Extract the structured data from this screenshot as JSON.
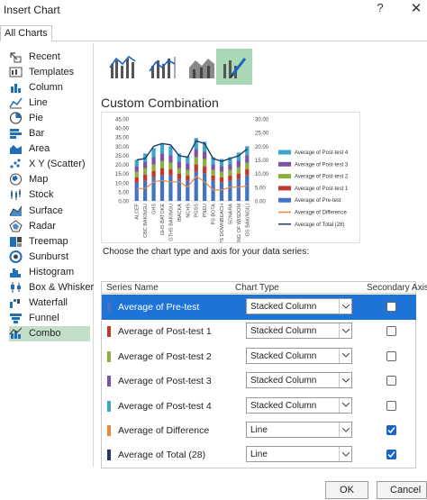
{
  "window": {
    "title": "Insert Chart",
    "help_label": "?",
    "close_label": "✕"
  },
  "tabs": [
    {
      "label": "All Charts"
    }
  ],
  "chart_types": [
    {
      "label": "Recent",
      "icon": "recent-icon"
    },
    {
      "label": "Templates",
      "icon": "templates-icon"
    },
    {
      "label": "Column",
      "icon": "column-chart-icon"
    },
    {
      "label": "Line",
      "icon": "line-chart-icon"
    },
    {
      "label": "Pie",
      "icon": "pie-chart-icon"
    },
    {
      "label": "Bar",
      "icon": "bar-chart-icon"
    },
    {
      "label": "Area",
      "icon": "area-chart-icon"
    },
    {
      "label": "X Y (Scatter)",
      "icon": "scatter-chart-icon"
    },
    {
      "label": "Map",
      "icon": "map-chart-icon"
    },
    {
      "label": "Stock",
      "icon": "stock-chart-icon"
    },
    {
      "label": "Surface",
      "icon": "surface-chart-icon"
    },
    {
      "label": "Radar",
      "icon": "radar-chart-icon"
    },
    {
      "label": "Treemap",
      "icon": "treemap-chart-icon"
    },
    {
      "label": "Sunburst",
      "icon": "sunburst-chart-icon"
    },
    {
      "label": "Histogram",
      "icon": "histogram-chart-icon"
    },
    {
      "label": "Box & Whisker",
      "icon": "box-whisker-chart-icon"
    },
    {
      "label": "Waterfall",
      "icon": "waterfall-chart-icon"
    },
    {
      "label": "Funnel",
      "icon": "funnel-chart-icon"
    },
    {
      "label": "Combo",
      "icon": "combo-chart-icon",
      "selected": true
    }
  ],
  "subtype_heading": "Custom Combination",
  "instructions": "Choose the chart type and axis for your data series:",
  "series_table": {
    "headers": {
      "name": "Series Name",
      "type": "Chart Type",
      "axis": "Secondary Axis"
    },
    "rows": [
      {
        "name": "Average of Pre-test",
        "type": "Stacked Column",
        "secondary": false,
        "color": "#4472c4",
        "selected": true
      },
      {
        "name": "Average of Post-test 1",
        "type": "Stacked Column",
        "secondary": false,
        "color": "#c0392b"
      },
      {
        "name": "Average of Post-test 2",
        "type": "Stacked Column",
        "secondary": false,
        "color": "#8ab23a"
      },
      {
        "name": "Average of Post-test 3",
        "type": "Stacked Column",
        "secondary": false,
        "color": "#7b52a6"
      },
      {
        "name": "Average of Post-test 4",
        "type": "Stacked Column",
        "secondary": false,
        "color": "#3aa6c8"
      },
      {
        "name": "Average of Difference",
        "type": "Line",
        "secondary": true,
        "color": "#ed8a3a"
      },
      {
        "name": "Average of Total (28)",
        "type": "Line",
        "secondary": true,
        "color": "#1f3864"
      }
    ]
  },
  "buttons": {
    "ok": "OK",
    "cancel": "Cancel"
  },
  "chart_data": {
    "type": "bar",
    "categories": [
      "ALCEF",
      "CBC BAKINGU",
      "GHS",
      "GHS BATOKE",
      "GTHS BAKINGU",
      "IBACKA",
      "NCHS",
      "PGSS",
      "PNEU",
      "PS BOTA",
      "PS DOWNBEACH",
      "SONARA",
      "SPRING OF WISDOM",
      "GS BAKINGILI"
    ],
    "series": [
      {
        "name": "Average of Post-test 4",
        "type": "stacked column",
        "values": [
          3.5,
          4.5,
          5.0,
          5.5,
          5.0,
          4.5,
          4.0,
          6.0,
          5.5,
          4.0,
          4.0,
          4.0,
          4.5,
          5.0
        ],
        "color": "#3aa6c8"
      },
      {
        "name": "Average of Post-test 3",
        "type": "stacked column",
        "values": [
          3.0,
          3.5,
          4.0,
          4.0,
          4.0,
          3.5,
          3.5,
          4.5,
          4.0,
          3.0,
          3.0,
          3.0,
          3.5,
          4.0
        ],
        "color": "#7b52a6"
      },
      {
        "name": "Average of Post-test 2",
        "type": "stacked column",
        "values": [
          3.0,
          3.5,
          3.5,
          4.0,
          3.5,
          3.0,
          3.0,
          4.0,
          4.0,
          3.0,
          3.0,
          3.0,
          3.5,
          3.5
        ],
        "color": "#8ab23a"
      },
      {
        "name": "Average of Post-test 1",
        "type": "stacked column",
        "values": [
          3.0,
          3.5,
          3.5,
          4.0,
          3.5,
          3.0,
          3.0,
          4.0,
          4.0,
          3.0,
          3.0,
          3.0,
          3.0,
          3.5
        ],
        "color": "#c0392b"
      },
      {
        "name": "Average of Pre-test",
        "type": "stacked column",
        "values": [
          10.0,
          11.0,
          13.0,
          14.0,
          14.0,
          12.0,
          11.0,
          16.0,
          15.0,
          11.0,
          10.0,
          11.0,
          12.0,
          14.0
        ],
        "color": "#4472c4"
      },
      {
        "name": "Average of Difference",
        "type": "line",
        "axis": "secondary",
        "values": [
          4.5,
          4.5,
          7.0,
          7.5,
          7.0,
          7.0,
          5.0,
          9.0,
          7.0,
          4.0,
          4.0,
          5.0,
          5.0,
          5.5
        ],
        "color": "#ed8a3a"
      },
      {
        "name": "Average of Total (28)",
        "type": "line",
        "axis": "secondary",
        "values": [
          15.0,
          15.5,
          20.0,
          21.0,
          20.5,
          16.5,
          16.0,
          22.0,
          21.0,
          15.5,
          14.5,
          15.5,
          16.5,
          19.0
        ],
        "color": "#1f3864"
      }
    ],
    "ylim": [
      0,
      45
    ],
    "y_ticks": [
      "0.00",
      "5.00",
      "10.00",
      "15.00",
      "20.00",
      "25.00",
      "30.00",
      "35.00",
      "40.00",
      "45.00"
    ],
    "y2lim": [
      0,
      30
    ],
    "y2_ticks": [
      "0.00",
      "5.00",
      "10.00",
      "15.00",
      "20.00",
      "25.00",
      "30.00"
    ],
    "legend_position": "right",
    "grid": false
  }
}
